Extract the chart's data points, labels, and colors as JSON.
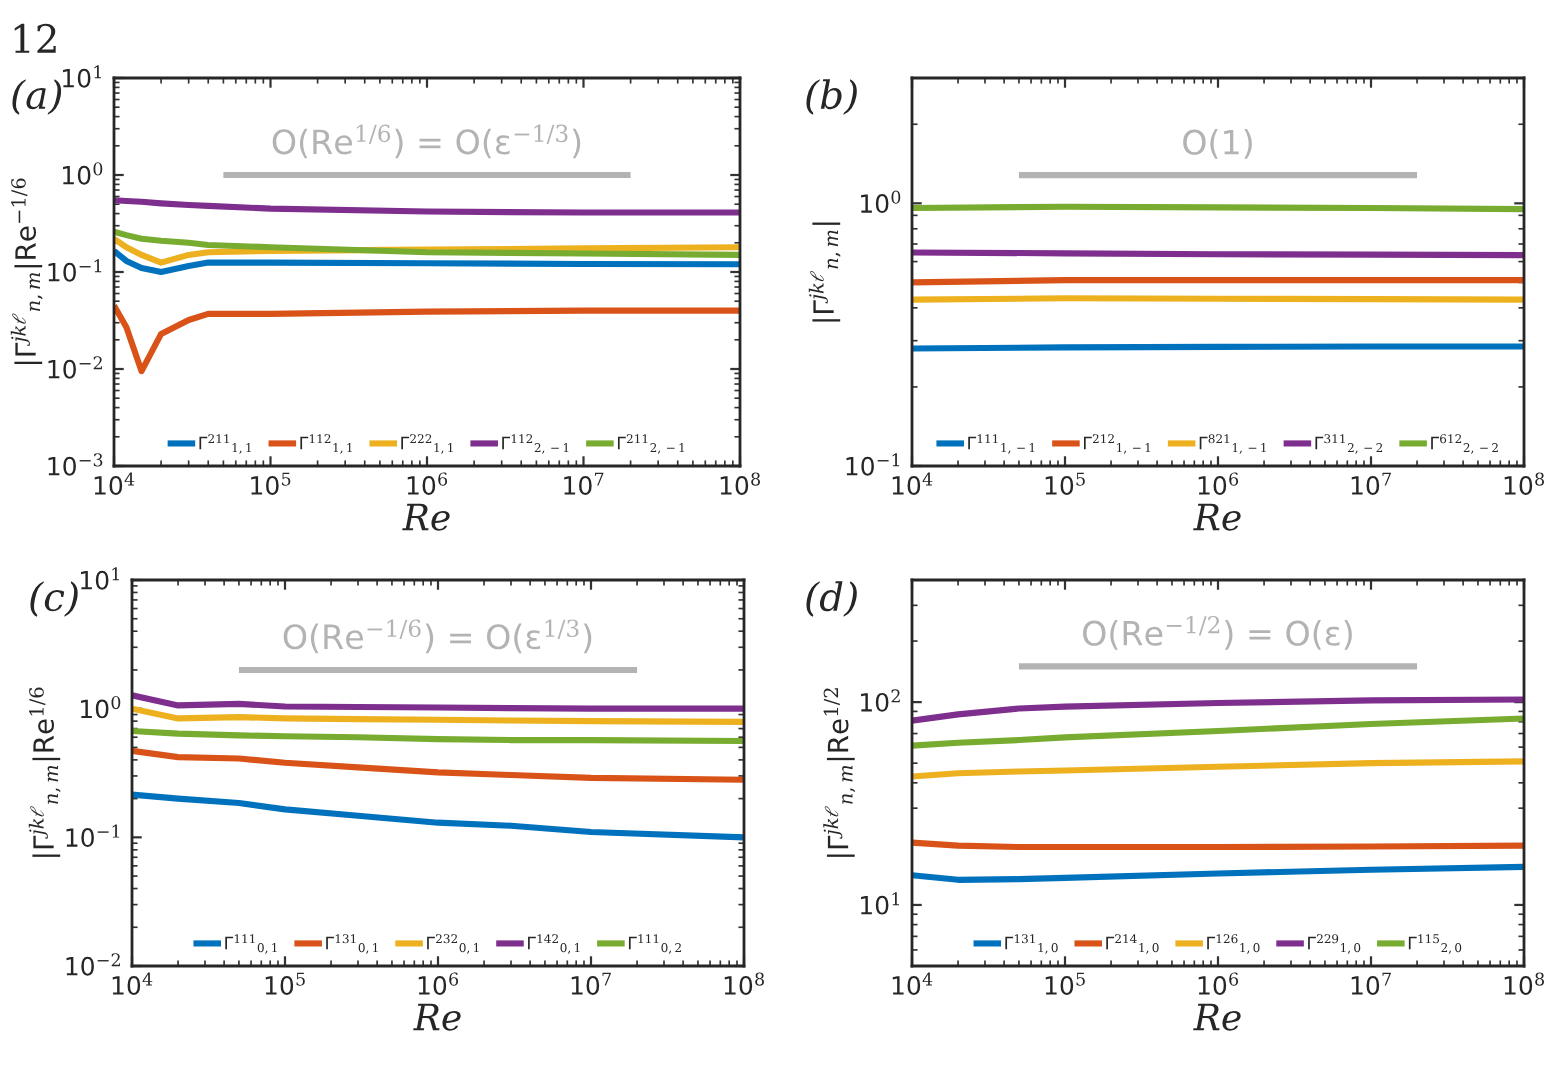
{
  "chart_data": [
    {
      "type": "line",
      "xlabel": "Re",
      "ylabel": "|Γ$^{jkℓ}$$_{n,m}$|Re$^{−1/6}$",
      "log": "xy",
      "grid": false,
      "legend": "bottom",
      "line_style": "solid",
      "xlim": [
        10000,
        100000000
      ],
      "ylim": [
        0.001,
        10
      ],
      "xticks": [
        {
          "value": 10000,
          "label": "10$^{4}$"
        },
        {
          "value": 100000,
          "label": "10$^{5}$"
        },
        {
          "value": 1000000,
          "label": "10$^{6}$"
        },
        {
          "value": 10000000,
          "label": "10$^{7}$"
        },
        {
          "value": 100000000,
          "label": "10$^{8}$"
        }
      ],
      "yticks": [
        {
          "value": 0.001,
          "label": "10$^{−3}$"
        },
        {
          "value": 0.01,
          "label": "10$^{−2}$"
        },
        {
          "value": 0.1,
          "label": "10$^{−1}$"
        },
        {
          "value": 1,
          "label": "10$^{0}$"
        },
        {
          "value": 10,
          "label": "10$^{1}$"
        }
      ],
      "annotations": [
        "12",
        "(a)",
        "O(Re$^{1/6}$) = O(ε$^{−1/3}$)"
      ],
      "series": [
        {
          "name": "Γ$^{211}$$_{1,1}$",
          "color": "#0072bd",
          "x": [
            10000,
            12000,
            15000,
            20000,
            30000,
            40000,
            100000,
            1000000,
            10000000,
            100000000
          ],
          "values": [
            0.165,
            0.13,
            0.11,
            0.1,
            0.115,
            0.125,
            0.125,
            0.123,
            0.121,
            0.12
          ]
        },
        {
          "name": "Γ$^{112}$$_{1,1}$",
          "color": "#d95319",
          "x": [
            10000,
            12000,
            15000,
            20000,
            30000,
            40000,
            100000,
            1000000,
            10000000,
            100000000
          ],
          "values": [
            0.045,
            0.027,
            0.0095,
            0.023,
            0.032,
            0.037,
            0.037,
            0.039,
            0.04,
            0.04
          ]
        },
        {
          "name": "Γ$^{222}$$_{1,1}$",
          "color": "#edb120",
          "x": [
            10000,
            12000,
            15000,
            20000,
            30000,
            40000,
            100000,
            1000000,
            10000000,
            100000000
          ],
          "values": [
            0.22,
            0.18,
            0.15,
            0.125,
            0.15,
            0.16,
            0.165,
            0.17,
            0.175,
            0.18
          ]
        },
        {
          "name": "Γ$^{112}$$_{2,−1}$",
          "color": "#7e2f8e",
          "x": [
            10000,
            12000,
            15000,
            20000,
            30000,
            40000,
            100000,
            1000000,
            10000000,
            100000000
          ],
          "values": [
            0.55,
            0.54,
            0.53,
            0.51,
            0.49,
            0.48,
            0.45,
            0.42,
            0.41,
            0.41
          ]
        },
        {
          "name": "Γ$^{211}$$_{2,−1}$",
          "color": "#77ac30",
          "x": [
            10000,
            12000,
            15000,
            20000,
            30000,
            40000,
            100000,
            1000000,
            10000000,
            100000000
          ],
          "values": [
            0.26,
            0.24,
            0.22,
            0.21,
            0.2,
            0.19,
            0.18,
            0.16,
            0.155,
            0.15
          ]
        },
        {
          "color": "#b3b3b3",
          "x": [
            50000,
            20000000
          ],
          "values": [
            1,
            1
          ]
        }
      ]
    },
    {
      "type": "line",
      "xlabel": "Re",
      "ylabel": "|Γ$^{jkℓ}$$_{n,m}$|",
      "log": "xy",
      "grid": false,
      "legend": "bottom",
      "line_style": "solid",
      "xlim": [
        10000,
        100000000
      ],
      "ylim": [
        0.1,
        3
      ],
      "xticks": [
        {
          "value": 10000,
          "label": "10$^{4}$"
        },
        {
          "value": 100000,
          "label": "10$^{5}$"
        },
        {
          "value": 1000000,
          "label": "10$^{6}$"
        },
        {
          "value": 10000000,
          "label": "10$^{7}$"
        },
        {
          "value": 100000000,
          "label": "10$^{8}$"
        }
      ],
      "yticks": [
        {
          "value": 0.1,
          "label": "10$^{−1}$"
        },
        {
          "value": 1,
          "label": "10$^{0}$"
        }
      ],
      "annotations": [
        "(b)",
        "O(1)"
      ],
      "series": [
        {
          "name": "Γ$^{111}$$_{1,−1}$",
          "color": "#0072bd",
          "x": [
            10000,
            100000,
            1000000,
            10000000,
            100000000
          ],
          "values": [
            0.28,
            0.283,
            0.284,
            0.285,
            0.285
          ]
        },
        {
          "name": "Γ$^{212}$$_{1,−1}$",
          "color": "#d95319",
          "x": [
            10000,
            100000,
            1000000,
            10000000,
            100000000
          ],
          "values": [
            0.5,
            0.51,
            0.51,
            0.51,
            0.51
          ]
        },
        {
          "name": "Γ$^{821}$$_{1,−1}$",
          "color": "#edb120",
          "x": [
            10000,
            100000,
            1000000,
            10000000,
            100000000
          ],
          "values": [
            0.43,
            0.435,
            0.433,
            0.432,
            0.43
          ]
        },
        {
          "name": "Γ$^{311}$$_{2,−2}$",
          "color": "#7e2f8e",
          "x": [
            10000,
            100000,
            1000000,
            10000000,
            100000000
          ],
          "values": [
            0.65,
            0.645,
            0.64,
            0.638,
            0.635
          ]
        },
        {
          "name": "Γ$^{612}$$_{2,−2}$",
          "color": "#77ac30",
          "x": [
            10000,
            100000,
            1000000,
            10000000,
            100000000
          ],
          "values": [
            0.96,
            0.97,
            0.965,
            0.96,
            0.95
          ]
        },
        {
          "color": "#b3b3b3",
          "x": [
            50000,
            20000000
          ],
          "values": [
            1.28,
            1.28
          ]
        }
      ]
    },
    {
      "type": "line",
      "xlabel": "Re",
      "ylabel": "|Γ$^{jkℓ}$$_{n,m}$|Re$^{1/6}$",
      "log": "xy",
      "grid": false,
      "legend": "bottom",
      "line_style": "solid",
      "xlim": [
        10000,
        100000000
      ],
      "ylim": [
        0.01,
        10
      ],
      "xticks": [
        {
          "value": 10000,
          "label": "10$^{4}$"
        },
        {
          "value": 100000,
          "label": "10$^{5}$"
        },
        {
          "value": 1000000,
          "label": "10$^{6}$"
        },
        {
          "value": 10000000,
          "label": "10$^{7}$"
        },
        {
          "value": 100000000,
          "label": "10$^{8}$"
        }
      ],
      "yticks": [
        {
          "value": 0.01,
          "label": "10$^{−2}$"
        },
        {
          "value": 0.1,
          "label": "10$^{−1}$"
        },
        {
          "value": 1,
          "label": "10$^{0}$"
        },
        {
          "value": 10,
          "label": "10$^{1}$"
        }
      ],
      "annotations": [
        "(c)",
        "O(Re$^{−1/6}$) = O(ε$^{1/3}$)"
      ],
      "series": [
        {
          "name": "Γ$^{111}$$_{0,1}$",
          "color": "#0072bd",
          "x": [
            10000,
            20000,
            50000,
            100000,
            300000,
            1000000,
            3000000,
            10000000,
            100000000
          ],
          "values": [
            0.215,
            0.2,
            0.185,
            0.165,
            0.147,
            0.13,
            0.123,
            0.11,
            0.1
          ]
        },
        {
          "name": "Γ$^{131}$$_{0,1}$",
          "color": "#d95319",
          "x": [
            10000,
            20000,
            50000,
            100000,
            300000,
            1000000,
            3000000,
            10000000,
            100000000
          ],
          "values": [
            0.47,
            0.42,
            0.41,
            0.38,
            0.35,
            0.32,
            0.305,
            0.29,
            0.28
          ]
        },
        {
          "name": "Γ$^{232}$$_{0,1}$",
          "color": "#edb120",
          "x": [
            10000,
            20000,
            50000,
            100000,
            300000,
            1000000,
            3000000,
            10000000,
            100000000
          ],
          "values": [
            1.0,
            0.84,
            0.86,
            0.84,
            0.83,
            0.82,
            0.81,
            0.8,
            0.79
          ]
        },
        {
          "name": "Γ$^{142}$$_{0,1}$",
          "color": "#7e2f8e",
          "x": [
            10000,
            20000,
            50000,
            100000,
            300000,
            1000000,
            3000000,
            10000000,
            100000000
          ],
          "values": [
            1.27,
            1.06,
            1.09,
            1.04,
            1.03,
            1.02,
            1.01,
            1.0,
            1.0
          ]
        },
        {
          "name": "Γ$^{111}$$_{0,2}$",
          "color": "#77ac30",
          "x": [
            10000,
            20000,
            50000,
            100000,
            300000,
            1000000,
            3000000,
            10000000,
            100000000
          ],
          "values": [
            0.67,
            0.64,
            0.62,
            0.61,
            0.6,
            0.58,
            0.57,
            0.57,
            0.56
          ]
        },
        {
          "color": "#b3b3b3",
          "x": [
            50000,
            20000000
          ],
          "values": [
            2,
            2
          ]
        }
      ]
    },
    {
      "type": "line",
      "xlabel": "Re",
      "ylabel": "|Γ$^{jkℓ}$$_{n,m}$|Re$^{1/2}$",
      "log": "xy",
      "grid": false,
      "legend": "bottom",
      "line_style": "solid",
      "xlim": [
        10000,
        100000000
      ],
      "ylim": [
        5,
        400
      ],
      "xticks": [
        {
          "value": 10000,
          "label": "10$^{4}$"
        },
        {
          "value": 100000,
          "label": "10$^{5}$"
        },
        {
          "value": 1000000,
          "label": "10$^{6}$"
        },
        {
          "value": 10000000,
          "label": "10$^{7}$"
        },
        {
          "value": 100000000,
          "label": "10$^{8}$"
        }
      ],
      "yticks": [
        {
          "value": 10,
          "label": "10$^{1}$"
        },
        {
          "value": 100,
          "label": "10$^{2}$"
        }
      ],
      "annotations": [
        "(d)",
        "O(Re$^{−1/2}$) = O(ε)"
      ],
      "series": [
        {
          "name": "Γ$^{131}$$_{1,0}$",
          "color": "#0072bd",
          "x": [
            10000,
            20000,
            50000,
            100000,
            1000000,
            10000000,
            100000000
          ],
          "values": [
            14,
            13.3,
            13.4,
            13.6,
            14.3,
            14.9,
            15.4
          ]
        },
        {
          "name": "Γ$^{214}$$_{1,0}$",
          "color": "#d95319",
          "x": [
            10000,
            20000,
            50000,
            100000,
            1000000,
            10000000,
            100000000
          ],
          "values": [
            20.3,
            19.6,
            19.3,
            19.3,
            19.3,
            19.4,
            19.6
          ]
        },
        {
          "name": "Γ$^{126}$$_{1,0}$",
          "color": "#edb120",
          "x": [
            10000,
            20000,
            50000,
            100000,
            1000000,
            10000000,
            100000000
          ],
          "values": [
            43,
            44.6,
            45.5,
            46,
            48,
            50,
            51
          ]
        },
        {
          "name": "Γ$^{229}$$_{1,0}$",
          "color": "#7e2f8e",
          "x": [
            10000,
            20000,
            50000,
            100000,
            1000000,
            10000000,
            100000000
          ],
          "values": [
            81,
            87,
            93,
            95,
            99,
            102,
            103
          ]
        },
        {
          "name": "Γ$^{115}$$_{2,0}$",
          "color": "#77ac30",
          "x": [
            10000,
            20000,
            50000,
            100000,
            1000000,
            10000000,
            100000000
          ],
          "values": [
            61,
            63,
            65,
            67,
            72,
            78,
            83
          ]
        },
        {
          "color": "#b3b3b3",
          "x": [
            50000,
            20000000
          ],
          "values": [
            150,
            150
          ]
        }
      ]
    }
  ]
}
